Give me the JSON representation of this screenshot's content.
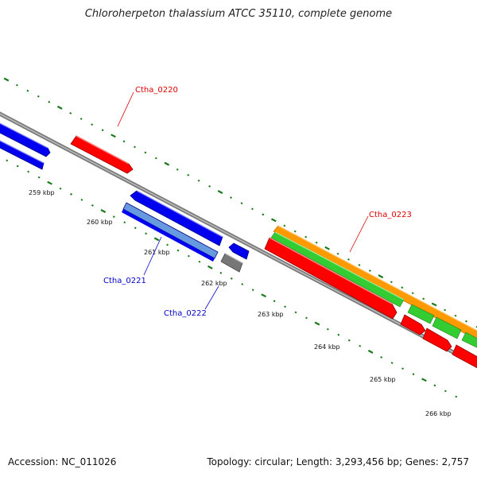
{
  "title": "Chloroherpeton thalassium ATCC 35110, complete genome",
  "footer": {
    "accession": "Accession: NC_011026",
    "topology": "Topology: circular; Length: 3,293,456 bp; Genes: 2,757"
  },
  "colors": {
    "backbone": "#888888",
    "tick": "#1a7a1a",
    "red_gene": "#ff0000",
    "blue_gene": "#0000ee",
    "light_blue_gene": "#6699dd",
    "grey_gene": "#777777",
    "green_gene": "#33cc33",
    "orange_gene": "#ff9900",
    "red_label": "#dd0000",
    "blue_label": "#0000cc"
  },
  "scale_labels": [
    "259 kbp",
    "260 kbp",
    "261 kbp",
    "262 kbp",
    "263 kbp",
    "264 kbp",
    "265 kbp",
    "266 kbp"
  ],
  "gene_labels": [
    {
      "name": "Ctha_0220",
      "color": "red"
    },
    {
      "name": "Ctha_0221",
      "color": "blue"
    },
    {
      "name": "Ctha_0222",
      "color": "blue"
    },
    {
      "name": "Ctha_0223",
      "color": "red"
    }
  ]
}
